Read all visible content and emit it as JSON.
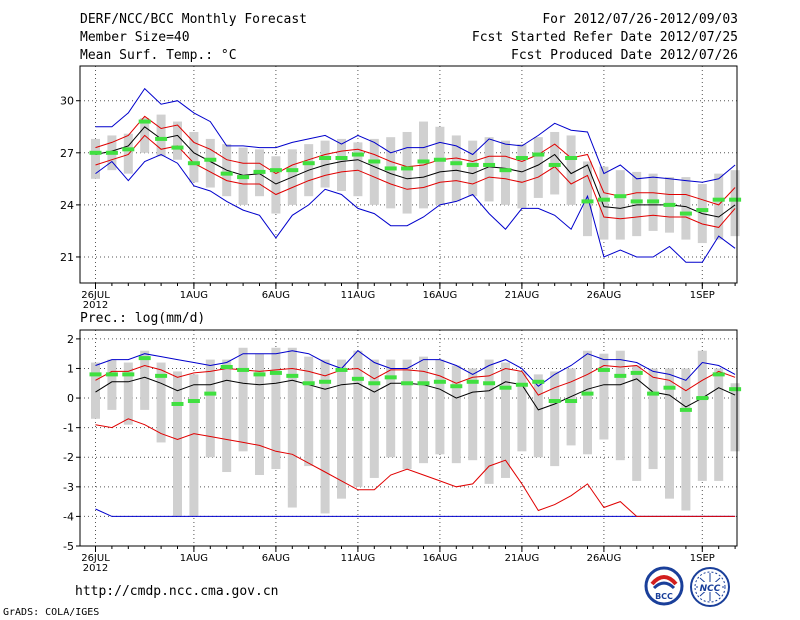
{
  "header": {
    "title": "DERF/NCC/BCC Monthly Forecast",
    "member_size": "Member Size=40",
    "variable_1": "Mean Surf. Temp.: °C",
    "period": "For 2012/07/26-2012/09/03",
    "started": "Fcst Started Refer Date 2012/07/25",
    "produced": "Fcst Produced Date 2012/07/26"
  },
  "panel2_title": "Prec.: log(mm/d)",
  "footer": {
    "url": "http://cmdp.ncc.cma.gov.cn",
    "credit": "GrADS: COLA/IGES",
    "logo1_text": "BCC",
    "logo2_text": "NCC"
  },
  "colors": {
    "box": "#d0d0d0",
    "median": "#40e040",
    "mean": "#000000",
    "std": "#e00000",
    "extreme": "#0000cc"
  },
  "chart_data": [
    {
      "type": "box",
      "title": "Mean Surf. Temp.: °C",
      "x": [
        "26JUL",
        "27JUL",
        "28JUL",
        "29JUL",
        "30JUL",
        "31JUL",
        "1AUG",
        "2AUG",
        "3AUG",
        "4AUG",
        "5AUG",
        "6AUG",
        "7AUG",
        "8AUG",
        "9AUG",
        "10AUG",
        "11AUG",
        "12AUG",
        "13AUG",
        "14AUG",
        "15AUG",
        "16AUG",
        "17AUG",
        "18AUG",
        "19AUG",
        "20AUG",
        "21AUG",
        "22AUG",
        "23AUG",
        "24AUG",
        "25AUG",
        "26AUG",
        "27AUG",
        "28AUG",
        "29AUG",
        "30AUG",
        "31AUG",
        "1SEP",
        "2SEP",
        "3SEP"
      ],
      "x_ticks": [
        "26JUL",
        "1AUG",
        "6AUG",
        "11AUG",
        "16AUG",
        "21AUG",
        "26AUG",
        "1SEP"
      ],
      "x_tick_sub": "2012",
      "ylim": [
        19.5,
        32
      ],
      "y_ticks": [
        21,
        24,
        27,
        30
      ],
      "box_low": [
        25.5,
        26.0,
        25.8,
        27.0,
        26.8,
        26.6,
        25.3,
        25.0,
        24.5,
        24.0,
        24.5,
        23.5,
        24.0,
        24.5,
        25.0,
        24.8,
        24.5,
        24.0,
        23.8,
        23.5,
        23.8,
        24.0,
        24.2,
        24.5,
        24.2,
        24.0,
        23.8,
        24.4,
        24.6,
        24.0,
        22.2,
        22.0,
        22.0,
        22.2,
        22.5,
        22.4,
        22.0,
        21.8,
        22.0,
        22.2
      ],
      "box_high": [
        27.8,
        28.0,
        28.1,
        29.0,
        29.2,
        28.8,
        28.2,
        27.8,
        27.5,
        27.3,
        27.2,
        26.8,
        27.2,
        27.5,
        27.7,
        27.8,
        27.6,
        27.8,
        27.9,
        28.2,
        28.8,
        28.5,
        28.0,
        27.7,
        27.9,
        27.7,
        27.5,
        27.9,
        28.2,
        28.0,
        26.5,
        26.2,
        26.0,
        25.9,
        25.8,
        25.6,
        25.6,
        25.2,
        25.8,
        26.0
      ],
      "median": [
        27.0,
        27.0,
        27.2,
        28.8,
        27.8,
        27.3,
        26.4,
        26.6,
        25.8,
        25.6,
        25.9,
        26.0,
        26.0,
        26.4,
        26.7,
        26.7,
        26.9,
        26.5,
        26.1,
        26.1,
        26.5,
        26.6,
        26.4,
        26.3,
        26.3,
        26.0,
        26.7,
        26.9,
        26.3,
        26.7,
        24.2,
        24.3,
        24.5,
        24.2,
        24.2,
        24.0,
        23.5,
        23.7,
        24.3,
        24.3
      ],
      "mean": [
        26.9,
        27.1,
        27.4,
        28.5,
        27.8,
        28.0,
        27.0,
        26.5,
        26.0,
        25.7,
        25.8,
        25.2,
        25.6,
        26.0,
        26.3,
        26.5,
        26.6,
        26.2,
        25.8,
        25.5,
        25.6,
        25.9,
        26.0,
        25.8,
        26.2,
        26.1,
        25.9,
        26.3,
        26.9,
        25.8,
        26.3,
        23.9,
        23.8,
        24.0,
        24.0,
        24.0,
        23.9,
        23.5,
        23.3,
        24.0
      ],
      "upper_std": [
        27.3,
        27.6,
        28.0,
        29.1,
        28.4,
        28.6,
        27.6,
        27.2,
        26.6,
        26.4,
        26.4,
        25.8,
        26.3,
        26.6,
        26.9,
        27.1,
        27.2,
        26.9,
        26.5,
        26.2,
        26.3,
        26.6,
        26.7,
        26.5,
        26.8,
        26.8,
        26.5,
        26.9,
        27.5,
        26.7,
        26.9,
        24.7,
        24.5,
        24.7,
        24.7,
        24.6,
        24.6,
        24.3,
        24.0,
        25.0
      ],
      "lower_std": [
        26.3,
        26.6,
        26.9,
        28.0,
        27.2,
        27.4,
        26.4,
        25.9,
        25.4,
        25.2,
        25.2,
        24.6,
        25.0,
        25.4,
        25.7,
        25.9,
        26.0,
        25.6,
        25.2,
        24.9,
        25.0,
        25.3,
        25.4,
        25.2,
        25.6,
        25.5,
        25.3,
        25.6,
        26.2,
        25.2,
        25.7,
        23.3,
        23.2,
        23.3,
        23.4,
        23.3,
        23.3,
        22.9,
        22.7,
        23.8
      ],
      "max": [
        28.5,
        28.5,
        29.3,
        30.7,
        29.8,
        30.0,
        29.3,
        28.8,
        27.4,
        27.4,
        27.3,
        27.3,
        27.6,
        27.8,
        28.0,
        27.5,
        28.0,
        27.6,
        27.0,
        27.3,
        27.3,
        27.6,
        27.4,
        26.9,
        27.8,
        27.5,
        27.4,
        28.0,
        28.7,
        28.3,
        28.2,
        25.8,
        26.3,
        25.5,
        25.6,
        25.5,
        25.4,
        25.3,
        25.5,
        26.3
      ],
      "min": [
        25.8,
        26.5,
        25.4,
        26.5,
        26.9,
        26.4,
        25.1,
        24.8,
        24.2,
        23.7,
        23.4,
        22.1,
        23.4,
        24.0,
        24.9,
        24.6,
        23.8,
        23.5,
        22.8,
        22.8,
        23.3,
        24.0,
        24.2,
        24.6,
        23.5,
        22.6,
        23.8,
        23.8,
        23.4,
        22.6,
        24.5,
        21.0,
        21.4,
        21.0,
        21.0,
        21.6,
        20.7,
        20.7,
        22.2,
        21.5
      ]
    },
    {
      "type": "box",
      "title": "Prec.: log(mm/d)",
      "x": [
        "26JUL",
        "27JUL",
        "28JUL",
        "29JUL",
        "30JUL",
        "31JUL",
        "1AUG",
        "2AUG",
        "3AUG",
        "4AUG",
        "5AUG",
        "6AUG",
        "7AUG",
        "8AUG",
        "9AUG",
        "10AUG",
        "11AUG",
        "12AUG",
        "13AUG",
        "14AUG",
        "15AUG",
        "16AUG",
        "17AUG",
        "18AUG",
        "19AUG",
        "20AUG",
        "21AUG",
        "22AUG",
        "23AUG",
        "24AUG",
        "25AUG",
        "26AUG",
        "27AUG",
        "28AUG",
        "29AUG",
        "30AUG",
        "31AUG",
        "1SEP",
        "2SEP",
        "3SEP"
      ],
      "x_ticks": [
        "26JUL",
        "1AUG",
        "6AUG",
        "11AUG",
        "16AUG",
        "21AUG",
        "26AUG",
        "1SEP"
      ],
      "x_tick_sub": "2012",
      "ylim": [
        -5,
        2.3
      ],
      "y_ticks": [
        -5,
        -4,
        -3,
        -2,
        -1,
        0,
        1,
        2
      ],
      "box_low": [
        -0.7,
        -0.4,
        -0.9,
        -0.4,
        -1.5,
        -4.0,
        -4.0,
        -2.0,
        -2.5,
        -1.8,
        -2.6,
        -2.4,
        -3.7,
        -2.3,
        -3.9,
        -3.4,
        -3.0,
        -2.7,
        -2.0,
        -2.4,
        -2.2,
        -1.9,
        -2.2,
        -2.1,
        -2.9,
        -2.7,
        -1.8,
        -2.0,
        -2.3,
        -1.6,
        -1.9,
        -1.4,
        -2.1,
        -2.8,
        -2.4,
        -3.4,
        -3.8,
        -2.8,
        -2.8,
        -1.8
      ],
      "box_high": [
        1.2,
        1.3,
        1.2,
        1.6,
        1.2,
        0.9,
        0.8,
        1.3,
        1.3,
        1.7,
        1.5,
        1.7,
        1.7,
        1.4,
        1.3,
        1.3,
        1.6,
        1.3,
        1.3,
        1.3,
        1.4,
        1.3,
        1.1,
        1.0,
        1.3,
        1.2,
        0.9,
        0.8,
        0.9,
        1.0,
        1.6,
        1.5,
        1.6,
        1.1,
        1.0,
        1.0,
        1.0,
        1.6,
        1.0,
        0.5
      ],
      "median": [
        0.8,
        0.8,
        0.8,
        1.35,
        0.75,
        -0.2,
        -0.1,
        0.15,
        1.05,
        0.95,
        0.8,
        0.85,
        0.75,
        0.5,
        0.55,
        0.95,
        0.65,
        0.5,
        0.7,
        0.5,
        0.5,
        0.55,
        0.4,
        0.55,
        0.5,
        0.35,
        0.45,
        0.55,
        -0.1,
        -0.1,
        0.15,
        0.95,
        0.75,
        0.85,
        0.15,
        0.35,
        -0.4,
        0.0,
        0.8,
        0.3
      ],
      "mean": [
        0.2,
        0.55,
        0.55,
        0.7,
        0.5,
        0.25,
        0.45,
        0.45,
        0.6,
        0.5,
        0.45,
        0.5,
        0.6,
        0.45,
        0.3,
        0.45,
        0.5,
        0.2,
        0.5,
        0.5,
        0.45,
        0.3,
        0.0,
        0.2,
        0.25,
        0.55,
        0.45,
        -0.4,
        -0.2,
        0.05,
        0.3,
        0.45,
        0.45,
        0.65,
        0.2,
        0.1,
        -0.3,
        0.0,
        0.35,
        0.1
      ],
      "upper_std": [
        0.6,
        0.9,
        0.9,
        1.1,
        0.95,
        0.7,
        0.85,
        0.9,
        1.0,
        0.95,
        0.9,
        0.95,
        1.0,
        0.9,
        0.75,
        0.95,
        1.0,
        0.65,
        0.95,
        0.95,
        0.9,
        0.75,
        0.5,
        0.7,
        0.75,
        1.0,
        0.9,
        0.1,
        0.35,
        0.55,
        0.8,
        1.1,
        1.05,
        1.1,
        0.7,
        0.6,
        0.25,
        0.6,
        0.9,
        0.7
      ],
      "lower_std": [
        -0.9,
        -1.0,
        -0.7,
        -0.9,
        -1.2,
        -1.4,
        -1.2,
        -1.3,
        -1.4,
        -1.5,
        -1.6,
        -1.8,
        -1.9,
        -2.2,
        -2.5,
        -2.8,
        -3.1,
        -3.1,
        -2.6,
        -2.4,
        -2.6,
        -2.8,
        -3.0,
        -2.9,
        -2.3,
        -2.1,
        -2.9,
        -3.8,
        -3.6,
        -3.3,
        -2.9,
        -3.7,
        -3.5,
        -4.0,
        -4.0,
        -4.0,
        -4.0,
        -4.0,
        -4.0,
        -4.0
      ],
      "max": [
        1.1,
        1.3,
        1.3,
        1.5,
        1.4,
        1.3,
        1.2,
        1.1,
        1.2,
        1.5,
        1.5,
        1.5,
        1.6,
        1.5,
        1.2,
        1.0,
        1.6,
        1.2,
        1.0,
        1.0,
        1.3,
        1.3,
        1.1,
        0.8,
        1.1,
        1.3,
        1.0,
        0.4,
        0.8,
        1.1,
        1.5,
        1.3,
        1.3,
        1.2,
        0.9,
        0.8,
        0.6,
        1.2,
        1.1,
        0.8
      ],
      "min": [
        -3.75,
        -4.0,
        -4.0,
        -4.0,
        -4.0,
        -4.0,
        -4.0,
        -4.0,
        -4.0,
        -4.0,
        -4.0,
        -4.0,
        -4.0,
        -4.0,
        -4.0,
        -4.0,
        -4.0,
        -4.0,
        -4.0,
        -4.0,
        -4.0,
        -4.0,
        -4.0,
        -4.0,
        -4.0,
        -4.0,
        -4.0,
        -4.0,
        -4.0,
        -4.0,
        -4.0,
        -4.0,
        -4.0,
        -4.0,
        -4.0,
        -4.0,
        -4.0,
        -4.0,
        -4.0,
        -4.0
      ]
    }
  ]
}
